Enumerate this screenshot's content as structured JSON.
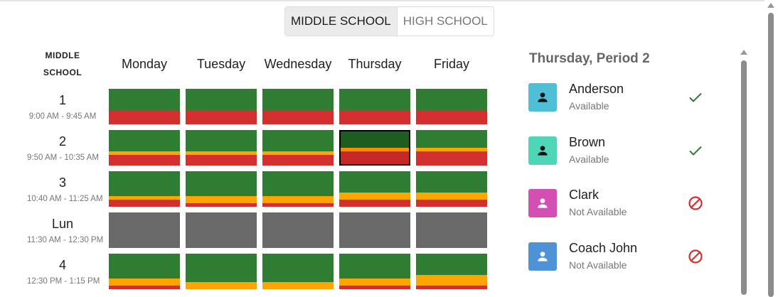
{
  "school_toggle": {
    "options": [
      "MIDDLE SCHOOL",
      "HIGH SCHOOL"
    ],
    "selected": "MIDDLE SCHOOL"
  },
  "schedule": {
    "corner_label": [
      "MIDDLE",
      "SCHOOL"
    ],
    "days": [
      "Monday",
      "Tuesday",
      "Wednesday",
      "Thursday",
      "Friday"
    ],
    "periods": [
      {
        "label": "1",
        "time": "9:00 AM - 9:45 AM"
      },
      {
        "label": "2",
        "time": "9:50 AM - 10:35 AM"
      },
      {
        "label": "3",
        "time": "10:40 AM - 11:25 AM"
      },
      {
        "label": "Lun",
        "time": "11:30 AM - 12:30 PM"
      },
      {
        "label": "4",
        "time": "12:30 PM - 1:15 PM"
      }
    ],
    "selected_cell": {
      "day": "Thursday",
      "period": "2"
    },
    "colors": {
      "available": "#2e7d32",
      "partial": "#ffa500",
      "unavailable": "#d32f2f",
      "lunch": "#696969",
      "selected_available": "#1b5e20",
      "selected_partial": "#ff8c00",
      "selected_unavailable": "#c62828"
    },
    "availability": [
      [
        [
          0.6,
          0,
          0.4
        ],
        [
          0.6,
          0,
          0.4
        ],
        [
          0.6,
          0,
          0.4
        ],
        [
          0.6,
          0,
          0.4
        ],
        [
          0.6,
          0,
          0.4
        ]
      ],
      [
        [
          0.6,
          0.1,
          0.3
        ],
        [
          0.6,
          0.1,
          0.3
        ],
        [
          0.6,
          0.1,
          0.3
        ],
        [
          0.5,
          0.1,
          0.4
        ],
        [
          0.5,
          0.1,
          0.4
        ]
      ],
      [
        [
          0.7,
          0.1,
          0.2
        ],
        [
          0.7,
          0.2,
          0.1
        ],
        [
          0.7,
          0.2,
          0.1
        ],
        [
          0.6,
          0.2,
          0.2
        ],
        [
          0.6,
          0.2,
          0.2
        ]
      ],
      [
        "lunch",
        "lunch",
        "lunch",
        "lunch",
        "lunch"
      ],
      [
        [
          0.7,
          0.2,
          0.1
        ],
        [
          0.8,
          0.2,
          0
        ],
        [
          0.8,
          0.2,
          0
        ],
        [
          0.7,
          0.2,
          0.1
        ],
        [
          0.6,
          0.3,
          0.1
        ]
      ]
    ]
  },
  "panel": {
    "title": "Thursday, Period 2",
    "teachers": [
      {
        "name": "Anderson",
        "status": "Available",
        "avatar_color": "#4fbfd6",
        "icon_color": "#111111",
        "status_icon": "check-icon"
      },
      {
        "name": "Brown",
        "status": "Available",
        "avatar_color": "#4fd6b9",
        "icon_color": "#111111",
        "status_icon": "check-icon"
      },
      {
        "name": "Clark",
        "status": "Not Available",
        "avatar_color": "#d44fb4",
        "icon_color": "#ffffff",
        "status_icon": "block-icon"
      },
      {
        "name": "Coach John",
        "status": "Not Available",
        "avatar_color": "#4f92d6",
        "icon_color": "#ffffff",
        "status_icon": "block-icon"
      }
    ]
  }
}
